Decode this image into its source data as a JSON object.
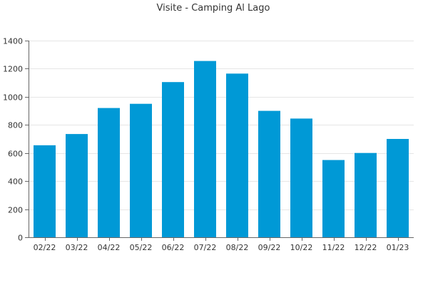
{
  "chart_data": {
    "type": "bar",
    "title": "Visite - Camping Al Lago",
    "xlabel": "",
    "ylabel": "",
    "categories": [
      "02/22",
      "03/22",
      "04/22",
      "05/22",
      "06/22",
      "07/22",
      "08/22",
      "09/22",
      "10/22",
      "11/22",
      "12/22",
      "01/23"
    ],
    "values": [
      655,
      735,
      920,
      950,
      1105,
      1255,
      1165,
      900,
      845,
      550,
      600,
      700
    ],
    "ylim": [
      0,
      1400
    ],
    "yticks": [
      0,
      200,
      400,
      600,
      800,
      1000,
      1200,
      1400
    ],
    "grid": true,
    "bar_color": "#0099d6"
  }
}
